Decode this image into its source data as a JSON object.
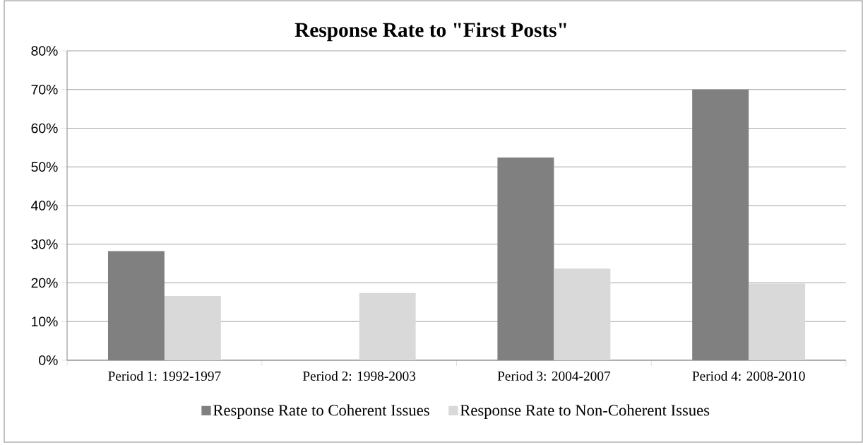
{
  "chart_data": {
    "type": "bar",
    "title": "Response Rate to \"First Posts\"",
    "categories": [
      "Period 1: 1992-1997",
      "Period 2: 1998-2003",
      "Period 3: 2004-2007",
      "Period 4: 2008-2010"
    ],
    "series": [
      {
        "name": "Response Rate to Coherent Issues",
        "color": "#808080",
        "values": [
          28.2,
          0,
          52.4,
          70.0
        ]
      },
      {
        "name": "Response Rate to Non-Coherent Issues",
        "color": "#d9d9d9",
        "values": [
          16.6,
          17.4,
          23.7,
          19.8
        ]
      }
    ],
    "ylim": [
      0,
      80
    ],
    "yticks": [
      {
        "value": 0,
        "label": "0%"
      },
      {
        "value": 10,
        "label": "10%"
      },
      {
        "value": 20,
        "label": "20%"
      },
      {
        "value": 30,
        "label": "30%"
      },
      {
        "value": 40,
        "label": "40%"
      },
      {
        "value": 50,
        "label": "50%"
      },
      {
        "value": 60,
        "label": "60%"
      },
      {
        "value": 70,
        "label": "70%"
      },
      {
        "value": 80,
        "label": "80%"
      }
    ],
    "grid": "y",
    "legend": "bottom"
  }
}
